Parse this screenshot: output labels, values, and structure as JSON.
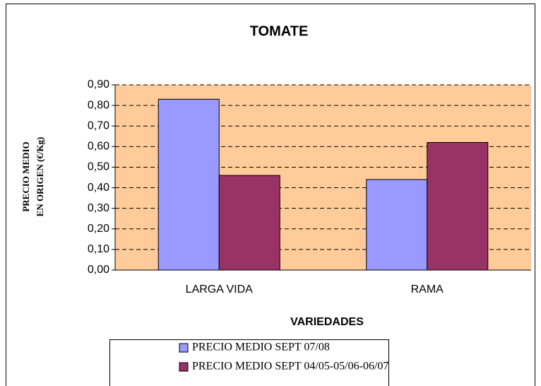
{
  "chart_data": {
    "type": "bar",
    "title": "TOMATE",
    "ylabel": [
      "PRECIO MEDIO",
      "EN ORIGEN (€/Kg)"
    ],
    "xlabel": "VARIEDADES",
    "categories": [
      "LARGA VIDA",
      "RAMA"
    ],
    "series": [
      {
        "name": "PRECIO MEDIO SEPT 07/08",
        "color": "#9999ff",
        "values": [
          0.83,
          0.44
        ]
      },
      {
        "name": "PRECIO MEDIO SEPT 04/05-05/06-06/07",
        "color": "#993366",
        "values": [
          0.46,
          0.62
        ]
      }
    ],
    "ylim": [
      0,
      0.9
    ],
    "yticks": [
      {
        "value": 0,
        "label": "0,00"
      },
      {
        "value": 0.1,
        "label": "0,10"
      },
      {
        "value": 0.2,
        "label": "0,20"
      },
      {
        "value": 0.3,
        "label": "0,30"
      },
      {
        "value": 0.4,
        "label": "0,40"
      },
      {
        "value": 0.5,
        "label": "0,50"
      },
      {
        "value": 0.6,
        "label": "0,60"
      },
      {
        "value": 0.7,
        "label": "0,70"
      },
      {
        "value": 0.8,
        "label": "0,80"
      },
      {
        "value": 0.9,
        "label": "0,90"
      }
    ],
    "grid": true,
    "plot_background": "#ffcc99",
    "legend": "bottom"
  }
}
